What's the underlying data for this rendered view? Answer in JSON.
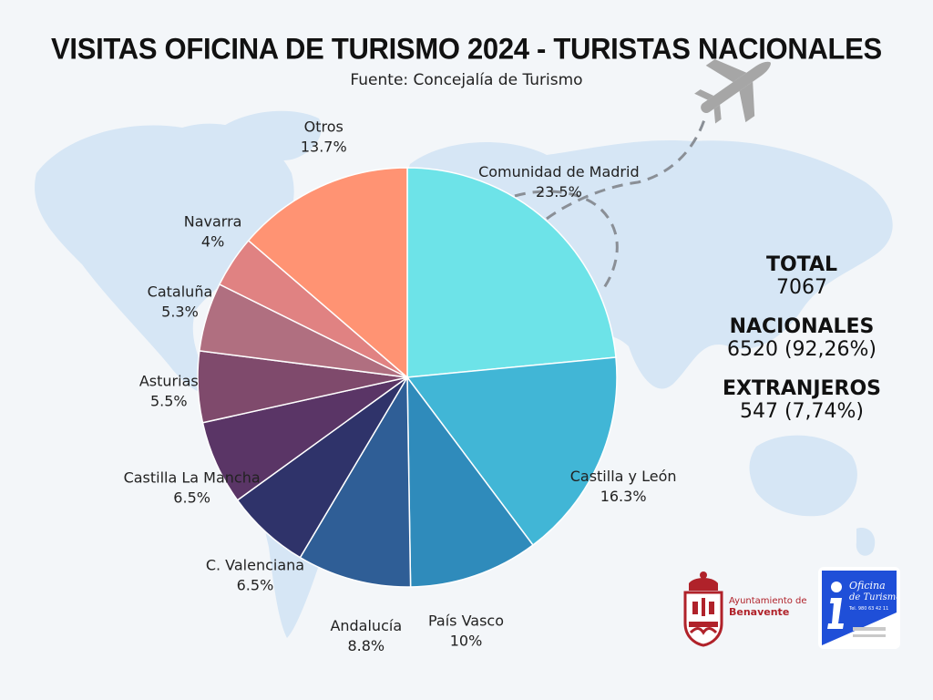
{
  "header": {
    "title": "VISITAS OFICINA DE TURISMO 2024 - TURISTAS NACIONALES",
    "subtitle": "Fuente: Concejalía de Turismo"
  },
  "stats": {
    "total_label": "TOTAL",
    "total_value": "7067",
    "nacionales_label": "NACIONALES",
    "nacionales_value": "6520 (92,26%)",
    "extranjeros_label": "EXTRANJEROS",
    "extranjeros_value": "547 (7,74%)"
  },
  "logos": {
    "ayuntamiento_line1": "Ayuntamiento de",
    "ayuntamiento_line2": "Benavente",
    "oficina_line1": "Oficina",
    "oficina_line2": "de Turismo",
    "oficina_phone": "Tel. 980 63 42 11"
  },
  "colors": {
    "background": "#f3f6f9",
    "map": "#d6e6f5",
    "plane": "#a6a6a6"
  },
  "icons": [
    "plane-icon",
    "town-crest-icon",
    "tourist-info-icon"
  ],
  "chart_data": {
    "type": "pie",
    "title": "VISITAS OFICINA DE TURISMO 2024 - TURISTAS NACIONALES",
    "start_angle_deg": 0,
    "direction": "clockwise",
    "slices": [
      {
        "label": "Comunidad de Madrid",
        "value": 23.5,
        "display": "23.5%",
        "color": "#6de3e8"
      },
      {
        "label": "Castilla y León",
        "value": 16.3,
        "display": "16.3%",
        "color": "#41b6d6"
      },
      {
        "label": "País Vasco",
        "value": 10,
        "display": "10%",
        "color": "#2f8bbb"
      },
      {
        "label": "Andalucía",
        "value": 8.8,
        "display": "8.8%",
        "color": "#2f5e96"
      },
      {
        "label": "C. Valenciana",
        "value": 6.5,
        "display": "6.5%",
        "color": "#2f336a"
      },
      {
        "label": "Castilla La Mancha",
        "value": 6.5,
        "display": "6.5%",
        "color": "#5a3566"
      },
      {
        "label": "Asturias",
        "value": 5.5,
        "display": "5.5%",
        "color": "#7f4a6c"
      },
      {
        "label": "Cataluña",
        "value": 5.3,
        "display": "5.3%",
        "color": "#b06f80"
      },
      {
        "label": "Navarra",
        "value": 4,
        "display": "4%",
        "color": "#e08282"
      },
      {
        "label": "Otros",
        "value": 13.7,
        "display": "13.7%",
        "color": "#ff9373"
      }
    ]
  }
}
